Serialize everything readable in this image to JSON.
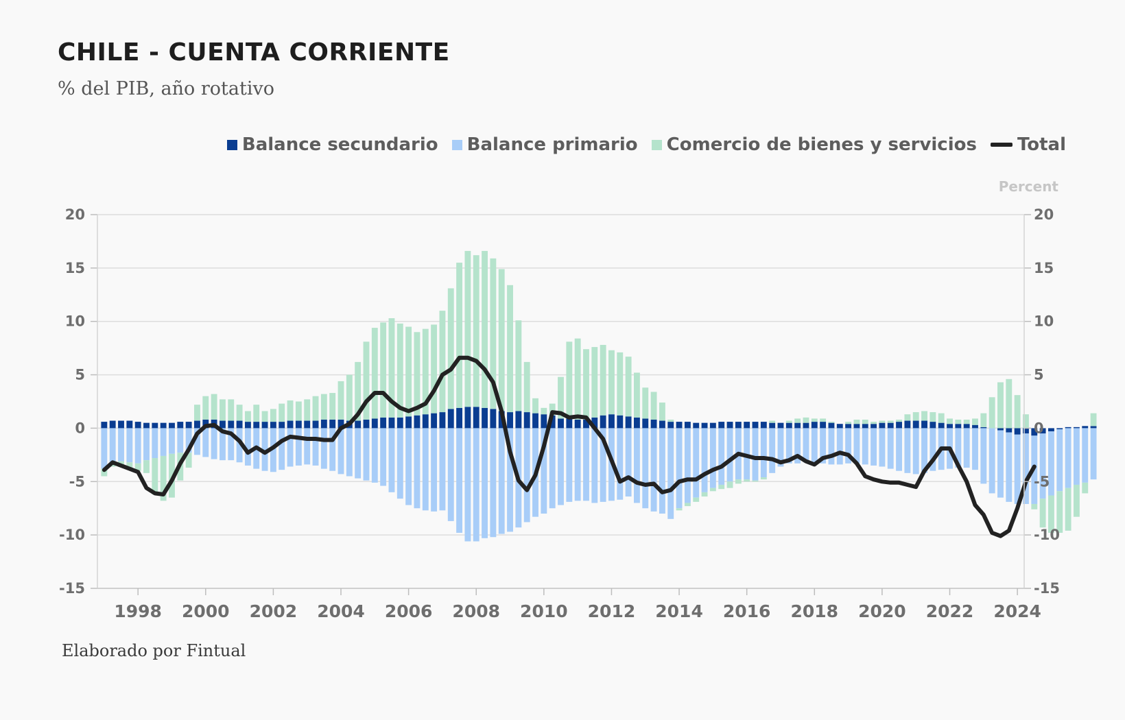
{
  "title": "CHILE - CUENTA CORRIENTE",
  "subtitle": "% del PIB, año rotativo",
  "source": "Elaborado por Fintual",
  "axis_unit": "Percent",
  "colors": {
    "secundario": "#0a3d91",
    "primario": "#a8cdf8",
    "comercio": "#b5e3cc",
    "total": "#222222",
    "grid": "#dddddd"
  },
  "legend": [
    {
      "key": "secundario",
      "label": "Balance secundario",
      "type": "bar"
    },
    {
      "key": "primario",
      "label": "Balance primario",
      "type": "bar"
    },
    {
      "key": "comercio",
      "label": "Comercio de bienes y servicios",
      "type": "bar"
    },
    {
      "key": "total",
      "label": "Total",
      "type": "line"
    }
  ],
  "chart_data": {
    "type": "bar",
    "stacked": true,
    "title": "CHILE - CUENTA CORRIENTE",
    "subtitle": "% del PIB, año rotativo",
    "ylabel": "Percent",
    "ylim": [
      -15,
      20
    ],
    "yticks": [
      20,
      15,
      10,
      5,
      0,
      -5,
      -10,
      -15
    ],
    "xlim": [
      1996.8,
      2024.2
    ],
    "xticks": [
      1998,
      2000,
      2002,
      2004,
      2006,
      2008,
      2010,
      2012,
      2014,
      2016,
      2018,
      2020,
      2022,
      2024
    ],
    "x_start": 1997.0,
    "x_step": 0.25,
    "series": [
      {
        "name": "Balance secundario",
        "values": [
          0.6,
          0.7,
          0.7,
          0.7,
          0.6,
          0.5,
          0.5,
          0.5,
          0.5,
          0.6,
          0.6,
          0.7,
          0.8,
          0.8,
          0.7,
          0.7,
          0.7,
          0.6,
          0.6,
          0.6,
          0.6,
          0.6,
          0.7,
          0.7,
          0.7,
          0.7,
          0.8,
          0.8,
          0.8,
          0.7,
          0.7,
          0.8,
          0.9,
          1.0,
          1.0,
          1.0,
          1.1,
          1.2,
          1.3,
          1.4,
          1.5,
          1.8,
          1.9,
          2.0,
          2.0,
          1.9,
          1.8,
          1.6,
          1.5,
          1.6,
          1.5,
          1.4,
          1.3,
          1.2,
          0.9,
          0.9,
          0.8,
          0.8,
          1.0,
          1.2,
          1.3,
          1.2,
          1.1,
          1.0,
          0.9,
          0.8,
          0.7,
          0.6,
          0.6,
          0.6,
          0.5,
          0.5,
          0.5,
          0.6,
          0.6,
          0.6,
          0.6,
          0.6,
          0.6,
          0.5,
          0.5,
          0.5,
          0.5,
          0.5,
          0.6,
          0.6,
          0.5,
          0.4,
          0.4,
          0.4,
          0.4,
          0.4,
          0.5,
          0.5,
          0.6,
          0.7,
          0.7,
          0.7,
          0.6,
          0.5,
          0.4,
          0.4,
          0.4,
          0.3,
          0.1,
          0.0,
          -0.2,
          -0.4,
          -0.6,
          -0.5,
          -0.7,
          -0.5,
          -0.3,
          -0.1,
          0.1,
          0.1,
          0.2,
          0.2
        ]
      },
      {
        "name": "Balance primario",
        "values": [
          -3.8,
          -3.3,
          -3.1,
          -3.2,
          -3.3,
          -3.0,
          -2.8,
          -2.6,
          -2.4,
          -2.3,
          -2.3,
          -2.5,
          -2.7,
          -2.9,
          -3.0,
          -3.0,
          -3.2,
          -3.5,
          -3.8,
          -4.0,
          -4.1,
          -3.9,
          -3.6,
          -3.5,
          -3.4,
          -3.5,
          -3.8,
          -4.0,
          -4.3,
          -4.5,
          -4.7,
          -4.9,
          -5.1,
          -5.4,
          -6.0,
          -6.6,
          -7.2,
          -7.5,
          -7.7,
          -7.8,
          -7.7,
          -8.7,
          -9.8,
          -10.6,
          -10.6,
          -10.3,
          -10.2,
          -9.9,
          -9.7,
          -9.3,
          -8.8,
          -8.3,
          -8.0,
          -7.5,
          -7.2,
          -6.9,
          -6.8,
          -6.8,
          -7.0,
          -6.9,
          -6.8,
          -6.7,
          -6.4,
          -7.0,
          -7.5,
          -7.8,
          -8.0,
          -8.5,
          -7.5,
          -7.0,
          -6.5,
          -6.0,
          -5.6,
          -5.3,
          -5.0,
          -4.8,
          -4.8,
          -4.9,
          -4.6,
          -4.2,
          -3.6,
          -3.3,
          -3.3,
          -3.2,
          -3.2,
          -3.3,
          -3.4,
          -3.4,
          -3.3,
          -3.3,
          -3.4,
          -3.5,
          -3.6,
          -3.8,
          -4.0,
          -4.2,
          -4.3,
          -4.2,
          -4.0,
          -3.9,
          -3.8,
          -3.7,
          -3.7,
          -3.9,
          -5.2,
          -6.1,
          -6.3,
          -6.5,
          -6.5,
          -6.6,
          -6.4,
          -6.1,
          -6.0,
          -5.8,
          -5.6,
          -5.3,
          -5.1,
          -4.8
        ]
      },
      {
        "name": "Comercio de bienes y servicios",
        "values": [
          -0.7,
          -0.3,
          -0.3,
          -0.5,
          -0.7,
          -1.2,
          -3.4,
          -4.2,
          -4.1,
          -2.6,
          -1.4,
          1.5,
          2.2,
          2.4,
          2.0,
          2.0,
          1.5,
          1.0,
          1.6,
          1.0,
          1.2,
          1.7,
          1.9,
          1.8,
          2.0,
          2.3,
          2.4,
          2.5,
          3.6,
          4.3,
          5.5,
          7.3,
          8.5,
          8.9,
          9.3,
          8.8,
          8.4,
          7.8,
          8.0,
          8.3,
          9.5,
          11.3,
          13.6,
          14.6,
          14.2,
          14.7,
          14.1,
          13.3,
          11.9,
          8.5,
          4.7,
          1.4,
          0.6,
          1.1,
          3.9,
          7.2,
          7.6,
          6.6,
          6.6,
          6.6,
          6.0,
          5.9,
          5.6,
          4.2,
          2.9,
          2.6,
          1.7,
          0.2,
          -0.2,
          -0.3,
          -0.4,
          -0.4,
          -0.3,
          -0.4,
          -0.6,
          -0.4,
          -0.2,
          -0.1,
          -0.2,
          0.2,
          0.0,
          0.2,
          0.4,
          0.5,
          0.3,
          0.3,
          0.1,
          0.0,
          0.2,
          0.4,
          0.4,
          0.2,
          0.2,
          0.2,
          0.2,
          0.6,
          0.8,
          0.9,
          0.9,
          0.9,
          0.5,
          0.4,
          0.4,
          0.6,
          1.3,
          2.9,
          4.3,
          4.6,
          3.1,
          1.3,
          -0.5,
          -2.7,
          -3.5,
          -3.9,
          -4.0,
          -3.0,
          -1.0,
          1.2
        ]
      },
      {
        "name": "Total",
        "values": [
          -3.9,
          -3.2,
          -3.5,
          -3.8,
          -4.1,
          -5.6,
          -6.1,
          -6.2,
          -4.9,
          -3.3,
          -2.0,
          -0.5,
          0.2,
          0.3,
          -0.3,
          -0.5,
          -1.2,
          -2.3,
          -1.8,
          -2.3,
          -1.8,
          -1.2,
          -0.8,
          -0.9,
          -1.0,
          -1.0,
          -1.1,
          -1.1,
          0.0,
          0.4,
          1.3,
          2.5,
          3.3,
          3.3,
          2.5,
          1.9,
          1.6,
          1.9,
          2.3,
          3.5,
          5.0,
          5.5,
          6.6,
          6.6,
          6.3,
          5.5,
          4.3,
          1.6,
          -2.2,
          -4.9,
          -5.8,
          -4.4,
          -1.7,
          1.5,
          1.4,
          1.0,
          1.1,
          1.0,
          0.0,
          -1.0,
          -3.0,
          -5.0,
          -4.6,
          -5.1,
          -5.3,
          -5.2,
          -6.0,
          -5.8,
          -5.0,
          -4.8,
          -4.8,
          -4.3,
          -3.9,
          -3.6,
          -3.0,
          -2.4,
          -2.6,
          -2.8,
          -2.8,
          -2.9,
          -3.2,
          -3.0,
          -2.6,
          -3.1,
          -3.4,
          -2.8,
          -2.6,
          -2.3,
          -2.5,
          -3.3,
          -4.5,
          -4.8,
          -5.0,
          -5.1,
          -5.1,
          -5.3,
          -5.5,
          -4.0,
          -3.0,
          -1.9,
          -1.9,
          -3.5,
          -5.0,
          -7.2,
          -8.1,
          -9.8,
          -10.1,
          -9.6,
          -7.5,
          -5.0,
          -3.6
        ]
      }
    ]
  }
}
